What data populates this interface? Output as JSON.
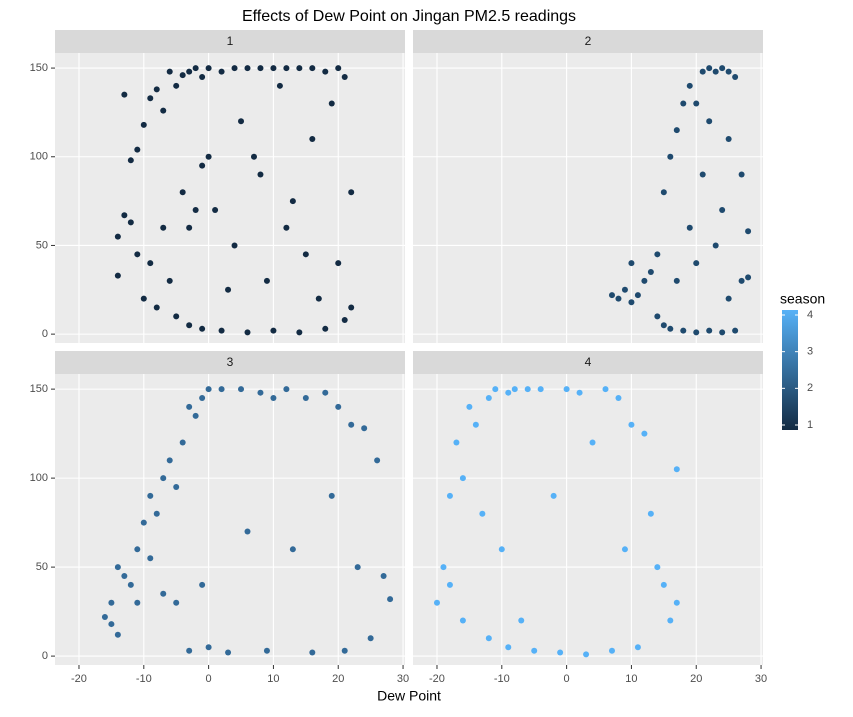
{
  "chart_data": {
    "type": "scatter",
    "title": "Effects of Dew Point on Jingan PM2.5 readings",
    "x_label": "Dew Point",
    "xlim": [
      -23.7,
      30.3
    ],
    "xticks": [
      -20,
      -10,
      0,
      10,
      20,
      30
    ],
    "ylim": [
      -5,
      158.5
    ],
    "yticks": [
      0,
      50,
      100,
      150
    ],
    "grid": true,
    "legend": {
      "title": "season",
      "ticks": [
        1,
        2,
        3,
        4
      ],
      "lim": [
        1,
        4
      ],
      "low_color": "#132B43",
      "high_color": "#56B1F7"
    },
    "series": [
      {
        "name": "1",
        "color": "#132B43",
        "x": [
          -14,
          -14,
          -13,
          -13,
          -12,
          -12,
          -11,
          -11,
          -10,
          -10,
          -9,
          -9,
          -8,
          -8,
          -7,
          -7,
          -6,
          -6,
          -5,
          -5,
          -4,
          -4,
          -3,
          -3,
          -2,
          -2,
          -1,
          -1,
          0,
          0,
          2,
          2,
          4,
          4,
          6,
          6,
          8,
          8,
          10,
          10,
          12,
          12,
          14,
          14,
          16,
          16,
          18,
          18,
          20,
          20,
          21,
          21,
          22,
          22,
          5,
          9,
          13,
          17,
          19,
          1,
          3,
          7,
          11,
          15,
          -1,
          -3
        ],
        "y": [
          33,
          55,
          135,
          67,
          98,
          63,
          104,
          45,
          118,
          20,
          133,
          40,
          138,
          15,
          126,
          60,
          148,
          30,
          140,
          10,
          146,
          80,
          148,
          5,
          150,
          70,
          145,
          3,
          150,
          100,
          148,
          2,
          150,
          50,
          150,
          1,
          150,
          90,
          150,
          2,
          150,
          60,
          150,
          1,
          150,
          110,
          148,
          3,
          150,
          40,
          145,
          8,
          80,
          15,
          120,
          30,
          75,
          20,
          130,
          70,
          25,
          100,
          140,
          45,
          95,
          60
        ]
      },
      {
        "name": "2",
        "color": "#1F4A6E",
        "x": [
          7,
          8,
          9,
          10,
          10,
          11,
          12,
          13,
          14,
          14,
          15,
          15,
          16,
          16,
          17,
          17,
          18,
          18,
          19,
          19,
          20,
          20,
          21,
          21,
          22,
          22,
          23,
          23,
          24,
          24,
          25,
          25,
          26,
          26,
          27,
          27,
          28,
          28,
          22,
          24,
          20,
          25
        ],
        "y": [
          22,
          20,
          25,
          40,
          18,
          22,
          30,
          35,
          45,
          10,
          80,
          5,
          100,
          3,
          115,
          30,
          130,
          2,
          140,
          60,
          130,
          1,
          148,
          90,
          150,
          2,
          148,
          50,
          150,
          1,
          148,
          110,
          145,
          2,
          90,
          30,
          32,
          58,
          120,
          70,
          40,
          20
        ]
      },
      {
        "name": "3",
        "color": "#336A98",
        "x": [
          -16,
          -15,
          -15,
          -14,
          -14,
          -13,
          -12,
          -11,
          -11,
          -10,
          -9,
          -9,
          -8,
          -7,
          -7,
          -6,
          -5,
          -5,
          -4,
          -3,
          -3,
          -2,
          -1,
          -1,
          0,
          0,
          2,
          3,
          5,
          6,
          8,
          9,
          10,
          12,
          13,
          15,
          16,
          18,
          19,
          20,
          21,
          22,
          23,
          24,
          25,
          26,
          27,
          28
        ],
        "y": [
          22,
          18,
          30,
          50,
          12,
          45,
          40,
          60,
          30,
          75,
          90,
          55,
          80,
          100,
          35,
          110,
          95,
          30,
          120,
          140,
          3,
          135,
          145,
          40,
          150,
          5,
          150,
          2,
          150,
          70,
          148,
          3,
          145,
          150,
          60,
          145,
          2,
          148,
          90,
          140,
          3,
          130,
          50,
          128,
          10,
          110,
          45,
          32
        ]
      },
      {
        "name": "4",
        "color": "#56B1F7",
        "x": [
          -20,
          -19,
          -18,
          -18,
          -17,
          -16,
          -16,
          -15,
          -14,
          -13,
          -12,
          -12,
          -11,
          -10,
          -9,
          -9,
          -8,
          -7,
          -6,
          -5,
          -4,
          -2,
          -1,
          0,
          2,
          3,
          4,
          6,
          7,
          8,
          9,
          10,
          11,
          12,
          13,
          14,
          15,
          16,
          17,
          17
        ],
        "y": [
          30,
          50,
          90,
          40,
          120,
          100,
          20,
          140,
          130,
          80,
          145,
          10,
          150,
          60,
          148,
          5,
          150,
          20,
          150,
          3,
          150,
          90,
          2,
          150,
          148,
          1,
          120,
          150,
          3,
          145,
          60,
          130,
          5,
          125,
          80,
          50,
          40,
          20,
          105,
          30
        ]
      }
    ]
  }
}
